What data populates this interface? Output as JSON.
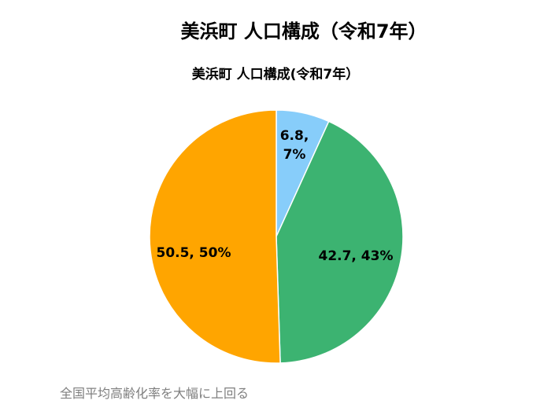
{
  "page": {
    "title": "美浜町 人口構成（令和7年）",
    "footnote": "全国平均高齢化率を大幅に上回る"
  },
  "chart_data": {
    "type": "pie",
    "title": "美浜町 人口構成(令和7年）",
    "slices": [
      {
        "value": 6.8,
        "percent": 7,
        "label_lines": [
          "6.8,",
          "7%"
        ],
        "color": "#87CDFA"
      },
      {
        "value": 42.7,
        "percent": 43,
        "label_lines": [
          "42.7, 43%"
        ],
        "color": "#3CB371"
      },
      {
        "value": 50.5,
        "percent": 50,
        "label_lines": [
          "50.5, 50%"
        ],
        "color": "#FFA500"
      }
    ],
    "start": "12 o'clock",
    "direction": "clockwise",
    "legend": "none"
  }
}
